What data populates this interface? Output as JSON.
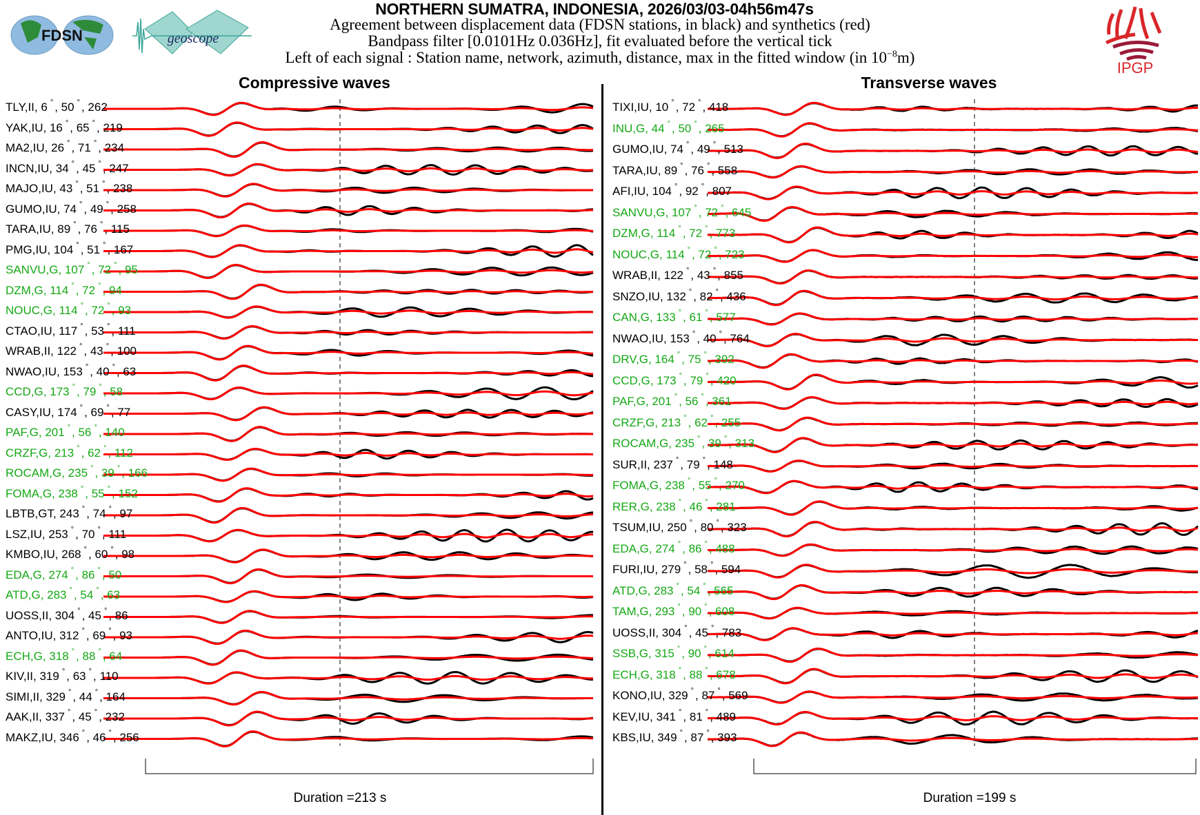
{
  "header": {
    "title": "NORTHERN SUMATRA, INDONESIA, 2026/03/03-04h56m47s",
    "line2": "Agreement between displacement data (FDSN stations, in black) and synthetics (red)",
    "line3": "Bandpass filter [0.0101Hz 0.036Hz], fit evaluated before the vertical tick",
    "line4_pre": "Left of each signal : Station name, network, azimuth, distance, max in the fitted window (in 10",
    "line4_exp": "−8",
    "line4_post": "m)"
  },
  "logos": {
    "fdsn": "FDSN",
    "geoscope": "geoscope",
    "ipgp": "IPGP"
  },
  "colors": {
    "data": "#000000",
    "synthetic": "#ff0000",
    "geoscope_station": "#14a814",
    "other_station": "#000000"
  },
  "chart_data": [
    {
      "type": "line",
      "title": "Compressive waves",
      "duration_label": "Duration =213 s",
      "duration_s": 213,
      "stations": [
        {
          "name": "TLY,II",
          "az": "6",
          "dist": "50",
          "max": "262",
          "g": false
        },
        {
          "name": "YAK,IU",
          "az": "16",
          "dist": "65",
          "max": "219",
          "g": false
        },
        {
          "name": "MA2,IU",
          "az": "26",
          "dist": "71",
          "max": "234",
          "g": false
        },
        {
          "name": "INCN,IU",
          "az": "34",
          "dist": "45",
          "max": "247",
          "g": false
        },
        {
          "name": "MAJO,IU",
          "az": "43",
          "dist": "51",
          "max": "238",
          "g": false
        },
        {
          "name": "GUMO,IU",
          "az": "74",
          "dist": "49",
          "max": "258",
          "g": false
        },
        {
          "name": "TARA,IU",
          "az": "89",
          "dist": "76",
          "max": "115",
          "g": false
        },
        {
          "name": "PMG,IU",
          "az": "104",
          "dist": "51",
          "max": "167",
          "g": false
        },
        {
          "name": "SANVU,G",
          "az": "107",
          "dist": "72",
          "max": "95",
          "g": true
        },
        {
          "name": "DZM,G",
          "az": "114",
          "dist": "72",
          "max": "94",
          "g": true
        },
        {
          "name": "NOUC,G",
          "az": "114",
          "dist": "72",
          "max": "93",
          "g": true
        },
        {
          "name": "CTAO,IU",
          "az": "117",
          "dist": "53",
          "max": "111",
          "g": false
        },
        {
          "name": "WRAB,II",
          "az": "122",
          "dist": "43",
          "max": "100",
          "g": false
        },
        {
          "name": "NWAO,IU",
          "az": "153",
          "dist": "40",
          "max": "63",
          "g": false
        },
        {
          "name": "CCD,G",
          "az": "173",
          "dist": "79",
          "max": "58",
          "g": true
        },
        {
          "name": "CASY,IU",
          "az": "174",
          "dist": "69",
          "max": "77",
          "g": false
        },
        {
          "name": "PAF,G",
          "az": "201",
          "dist": "56",
          "max": "140",
          "g": true
        },
        {
          "name": "CRZF,G",
          "az": "213",
          "dist": "62",
          "max": "112",
          "g": true
        },
        {
          "name": "ROCAM,G",
          "az": "235",
          "dist": "39",
          "max": "166",
          "g": true
        },
        {
          "name": "FOMA,G",
          "az": "238",
          "dist": "55",
          "max": "152",
          "g": true
        },
        {
          "name": "LBTB,GT",
          "az": "243",
          "dist": "74",
          "max": "97",
          "g": false
        },
        {
          "name": "LSZ,IU",
          "az": "253",
          "dist": "70",
          "max": "111",
          "g": false
        },
        {
          "name": "KMBO,IU",
          "az": "268",
          "dist": "60",
          "max": "98",
          "g": false
        },
        {
          "name": "EDA,G",
          "az": "274",
          "dist": "86",
          "max": "50",
          "g": true
        },
        {
          "name": "ATD,G",
          "az": "283",
          "dist": "54",
          "max": "63",
          "g": true
        },
        {
          "name": "UOSS,II",
          "az": "304",
          "dist": "45",
          "max": "86",
          "g": false
        },
        {
          "name": "ANTO,IU",
          "az": "312",
          "dist": "69",
          "max": "93",
          "g": false
        },
        {
          "name": "ECH,G",
          "az": "318",
          "dist": "88",
          "max": "64",
          "g": true
        },
        {
          "name": "KIV,II",
          "az": "319",
          "dist": "63",
          "max": "110",
          "g": false
        },
        {
          "name": "SIMI,II",
          "az": "329",
          "dist": "44",
          "max": "164",
          "g": false
        },
        {
          "name": "AAK,II",
          "az": "337",
          "dist": "45",
          "max": "232",
          "g": false
        },
        {
          "name": "MAKZ,IU",
          "az": "346",
          "dist": "46",
          "max": "256",
          "g": false
        }
      ]
    },
    {
      "type": "line",
      "title": "Transverse waves",
      "duration_label": "Duration =199 s",
      "duration_s": 199,
      "stations": [
        {
          "name": "TIXI,IU",
          "az": "10",
          "dist": "72",
          "max": "418",
          "g": false
        },
        {
          "name": "INU,G",
          "az": "44",
          "dist": "50",
          "max": "265",
          "g": true
        },
        {
          "name": "GUMO,IU",
          "az": "74",
          "dist": "49",
          "max": "513",
          "g": false
        },
        {
          "name": "TARA,IU",
          "az": "89",
          "dist": "76",
          "max": "558",
          "g": false
        },
        {
          "name": "AFI,IU",
          "az": "104",
          "dist": "92",
          "max": "807",
          "g": false
        },
        {
          "name": "SANVU,G",
          "az": "107",
          "dist": "72",
          "max": "645",
          "g": true
        },
        {
          "name": "DZM,G",
          "az": "114",
          "dist": "72",
          "max": "773",
          "g": true
        },
        {
          "name": "NOUC,G",
          "az": "114",
          "dist": "72",
          "max": "723",
          "g": true
        },
        {
          "name": "WRAB,II",
          "az": "122",
          "dist": "43",
          "max": "855",
          "g": false
        },
        {
          "name": "SNZO,IU",
          "az": "132",
          "dist": "82",
          "max": "436",
          "g": false
        },
        {
          "name": "CAN,G",
          "az": "133",
          "dist": "61",
          "max": "577",
          "g": true
        },
        {
          "name": "NWAO,IU",
          "az": "153",
          "dist": "40",
          "max": "764",
          "g": false
        },
        {
          "name": "DRV,G",
          "az": "164",
          "dist": "75",
          "max": "392",
          "g": true
        },
        {
          "name": "CCD,G",
          "az": "173",
          "dist": "79",
          "max": "420",
          "g": true
        },
        {
          "name": "PAF,G",
          "az": "201",
          "dist": "56",
          "max": "361",
          "g": true
        },
        {
          "name": "CRZF,G",
          "az": "213",
          "dist": "62",
          "max": "255",
          "g": true
        },
        {
          "name": "ROCAM,G",
          "az": "235",
          "dist": "39",
          "max": "313",
          "g": true
        },
        {
          "name": "SUR,II",
          "az": "237",
          "dist": "79",
          "max": "148",
          "g": false
        },
        {
          "name": "FOMA,G",
          "az": "238",
          "dist": "55",
          "max": "270",
          "g": true
        },
        {
          "name": "RER,G",
          "az": "238",
          "dist": "46",
          "max": "281",
          "g": true
        },
        {
          "name": "TSUM,IU",
          "az": "250",
          "dist": "80",
          "max": "323",
          "g": false
        },
        {
          "name": "EDA,G",
          "az": "274",
          "dist": "86",
          "max": "488",
          "g": true
        },
        {
          "name": "FURI,IU",
          "az": "279",
          "dist": "58",
          "max": "594",
          "g": false
        },
        {
          "name": "ATD,G",
          "az": "283",
          "dist": "54",
          "max": "565",
          "g": true
        },
        {
          "name": "TAM,G",
          "az": "293",
          "dist": "90",
          "max": "608",
          "g": true
        },
        {
          "name": "UOSS,II",
          "az": "304",
          "dist": "45",
          "max": "783",
          "g": false
        },
        {
          "name": "SSB,G",
          "az": "315",
          "dist": "90",
          "max": "614",
          "g": true
        },
        {
          "name": "ECH,G",
          "az": "318",
          "dist": "88",
          "max": "678",
          "g": true
        },
        {
          "name": "KONO,IU",
          "az": "329",
          "dist": "87",
          "max": "569",
          "g": false
        },
        {
          "name": "KEV,IU",
          "az": "341",
          "dist": "81",
          "max": "489",
          "g": false
        },
        {
          "name": "KBS,IU",
          "az": "349",
          "dist": "87",
          "max": "393",
          "g": false
        }
      ]
    }
  ]
}
